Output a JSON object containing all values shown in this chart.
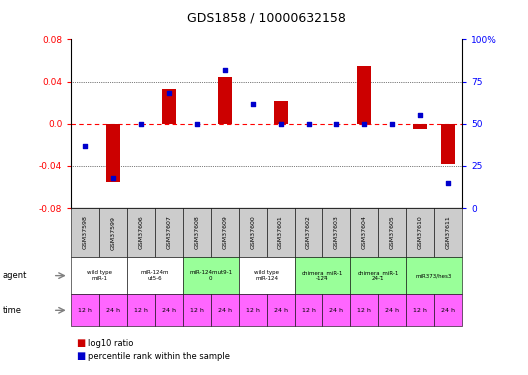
{
  "title": "GDS1858 / 10000632158",
  "samples": [
    "GSM37598",
    "GSM37599",
    "GSM37606",
    "GSM37607",
    "GSM37608",
    "GSM37609",
    "GSM37600",
    "GSM37601",
    "GSM37602",
    "GSM37603",
    "GSM37604",
    "GSM37605",
    "GSM37610",
    "GSM37611"
  ],
  "log10_ratio": [
    0.0,
    -0.055,
    0.0,
    0.033,
    0.0,
    0.044,
    0.0,
    0.022,
    0.0,
    0.0,
    0.055,
    0.0,
    -0.005,
    -0.038
  ],
  "percentile_rank": [
    37,
    18,
    50,
    68,
    50,
    82,
    62,
    50,
    50,
    50,
    50,
    50,
    55,
    15
  ],
  "ylim_left": [
    -0.08,
    0.08
  ],
  "ylim_right": [
    0,
    100
  ],
  "yticks_left": [
    -0.08,
    -0.04,
    0.0,
    0.04,
    0.08
  ],
  "yticks_right": [
    0,
    25,
    50,
    75,
    100
  ],
  "bar_color": "#cc0000",
  "dot_color": "#0000cc",
  "agent_groups": [
    {
      "label": "wild type\nmiR-1",
      "start": 0,
      "end": 2,
      "color": "#ffffff"
    },
    {
      "label": "miR-124m\nut5-6",
      "start": 2,
      "end": 4,
      "color": "#ffffff"
    },
    {
      "label": "miR-124mut9-1\n0",
      "start": 4,
      "end": 6,
      "color": "#99ff99"
    },
    {
      "label": "wild type\nmiR-124",
      "start": 6,
      "end": 8,
      "color": "#ffffff"
    },
    {
      "label": "chimera_miR-1\n-124",
      "start": 8,
      "end": 10,
      "color": "#99ff99"
    },
    {
      "label": "chimera_miR-1\n24-1",
      "start": 10,
      "end": 12,
      "color": "#99ff99"
    },
    {
      "label": "miR373/hes3",
      "start": 12,
      "end": 14,
      "color": "#99ff99"
    }
  ],
  "time_labels": [
    "12 h",
    "24 h",
    "12 h",
    "24 h",
    "12 h",
    "24 h",
    "12 h",
    "24 h",
    "12 h",
    "24 h",
    "12 h",
    "24 h",
    "12 h",
    "24 h"
  ],
  "time_color": "#ff66ff",
  "sample_bg_color": "#cccccc",
  "left_label_color": "#000000",
  "arrow_color": "#888888"
}
